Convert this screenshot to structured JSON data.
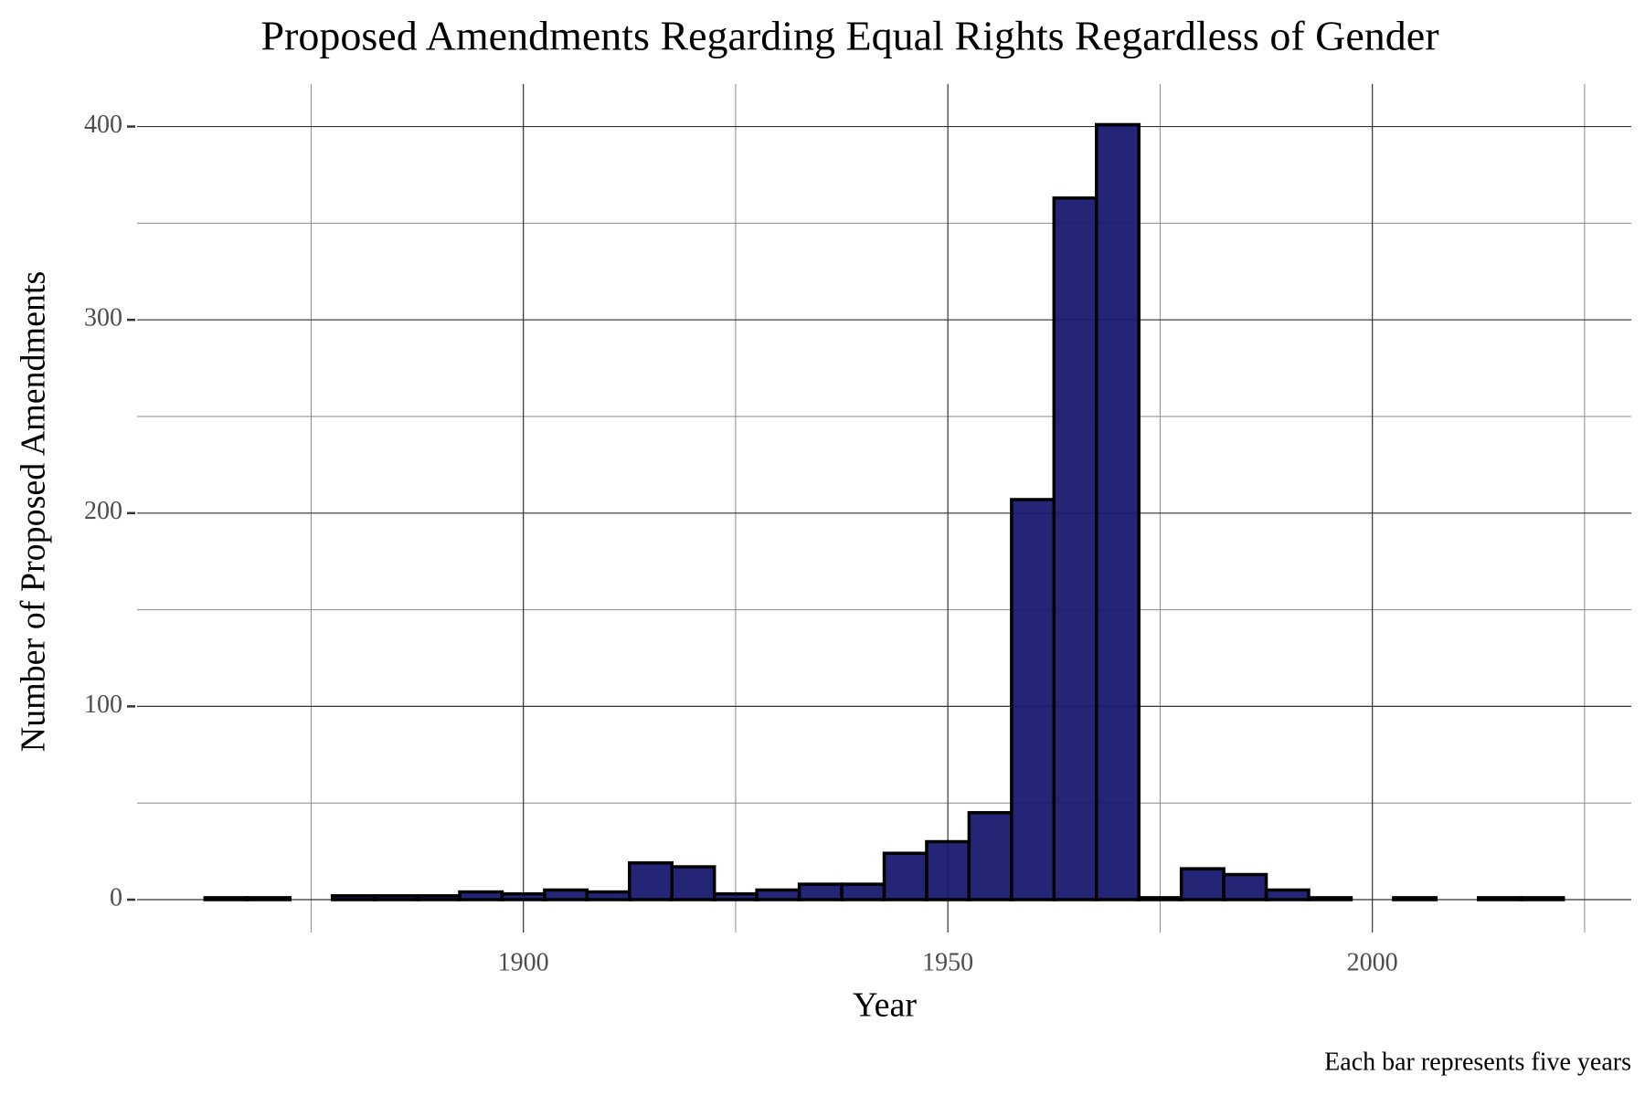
{
  "chart_data": {
    "type": "histogram",
    "title": "Proposed Amendments Regarding Equal Rights Regardless of Gender",
    "x_label": "Year",
    "y_label": "Number of Proposed Amendments",
    "caption": "Each bar represents five years",
    "bins": [
      1862.5,
      1867.5,
      1872.5,
      1877.5,
      1882.5,
      1887.5,
      1892.5,
      1897.5,
      1902.5,
      1907.5,
      1912.5,
      1917.5,
      1922.5,
      1927.5,
      1932.5,
      1937.5,
      1942.5,
      1947.5,
      1952.5,
      1957.5,
      1962.5,
      1967.5,
      1972.5,
      1977.5,
      1982.5,
      1987.5,
      1992.5,
      1997.5,
      2002.5,
      2007.5,
      2012.5,
      2017.5,
      2022.5
    ],
    "counts": [
      1,
      1,
      0,
      2,
      2,
      2,
      4,
      3,
      5,
      4,
      19,
      17,
      3,
      5,
      8,
      8,
      24,
      30,
      45,
      207,
      363,
      401,
      1,
      16,
      13,
      5,
      1,
      0,
      1,
      0,
      1,
      1
    ],
    "color": "#191970",
    "edge_color": "#000000",
    "xlim": [
      1854.5,
      2030.5
    ],
    "ylim": [
      -17,
      422
    ],
    "xticks": [
      1900,
      1950,
      2000
    ],
    "yticks": [
      0,
      100,
      200,
      300,
      400
    ],
    "grid": true,
    "minor_grid": true
  }
}
